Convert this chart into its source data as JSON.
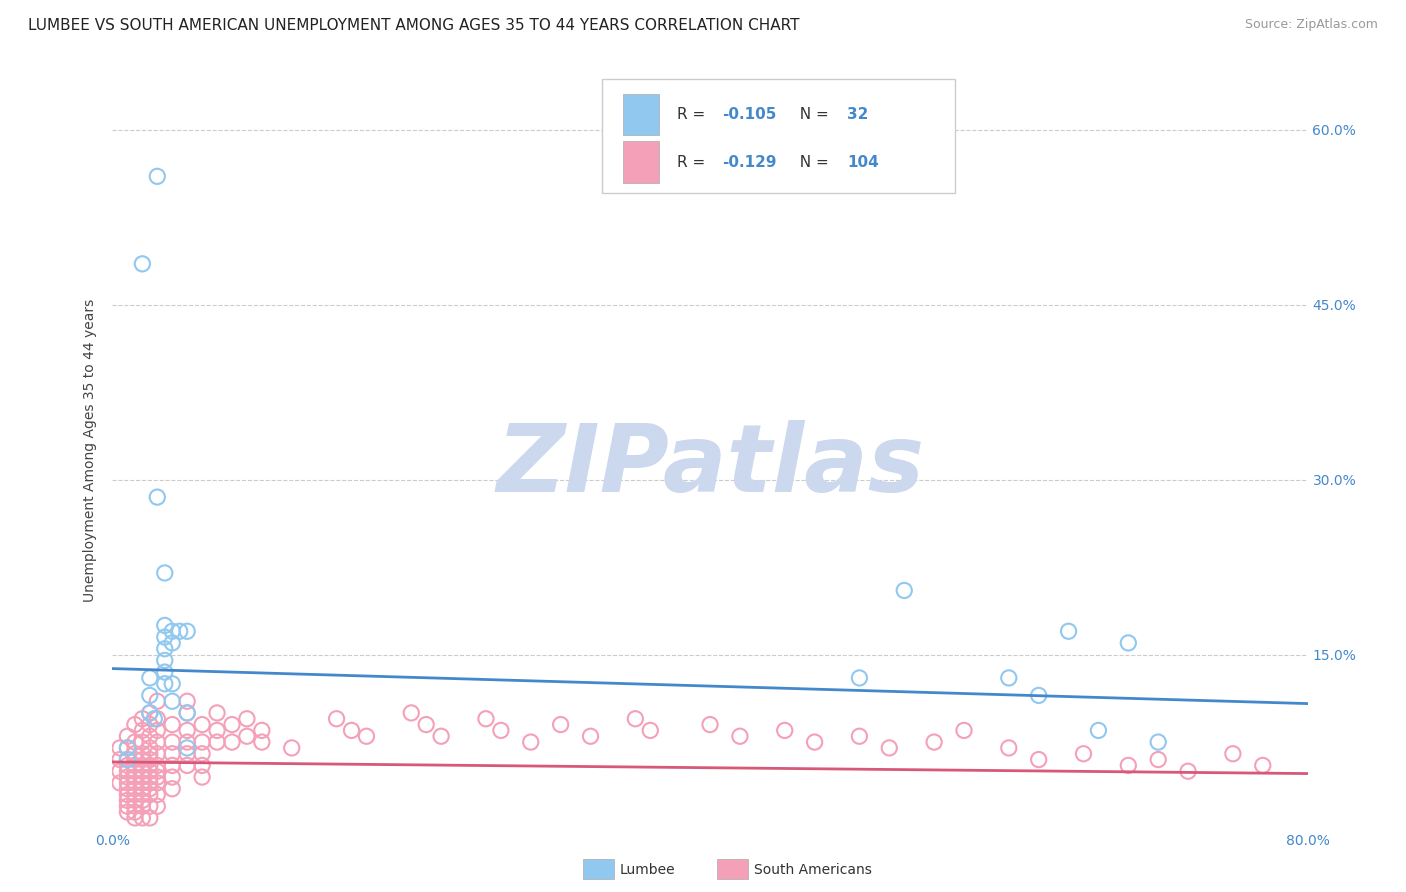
{
  "title": "LUMBEE VS SOUTH AMERICAN UNEMPLOYMENT AMONG AGES 35 TO 44 YEARS CORRELATION CHART",
  "source": "Source: ZipAtlas.com",
  "ylabel": "Unemployment Among Ages 35 to 44 years",
  "xlim": [
    0.0,
    0.8
  ],
  "ylim": [
    0.0,
    0.65
  ],
  "yticks": [
    0.0,
    0.15,
    0.3,
    0.45,
    0.6
  ],
  "yticklabels": [
    "",
    "15.0%",
    "30.0%",
    "45.0%",
    "60.0%"
  ],
  "xticks": [
    0.0,
    0.2,
    0.4,
    0.6,
    0.8
  ],
  "xticklabels": [
    "0.0%",
    "",
    "",
    "",
    "80.0%"
  ],
  "lumbee_R": "-0.105",
  "lumbee_N": "32",
  "south_american_R": "-0.129",
  "south_american_N": "104",
  "lumbee_color": "#90C8F0",
  "south_american_color": "#F4A0B8",
  "lumbee_line_color": "#4488CC",
  "south_american_line_color": "#D85878",
  "watermark_text": "ZIPatlas",
  "watermark_color": "#CBD8EE",
  "lumbee_points": [
    [
      0.01,
      0.07
    ],
    [
      0.01,
      0.06
    ],
    [
      0.02,
      0.485
    ],
    [
      0.025,
      0.13
    ],
    [
      0.025,
      0.115
    ],
    [
      0.025,
      0.1
    ],
    [
      0.028,
      0.095
    ],
    [
      0.03,
      0.56
    ],
    [
      0.03,
      0.285
    ],
    [
      0.035,
      0.22
    ],
    [
      0.035,
      0.175
    ],
    [
      0.035,
      0.165
    ],
    [
      0.035,
      0.155
    ],
    [
      0.035,
      0.145
    ],
    [
      0.035,
      0.135
    ],
    [
      0.035,
      0.125
    ],
    [
      0.04,
      0.17
    ],
    [
      0.04,
      0.16
    ],
    [
      0.04,
      0.125
    ],
    [
      0.04,
      0.11
    ],
    [
      0.045,
      0.17
    ],
    [
      0.05,
      0.17
    ],
    [
      0.05,
      0.1
    ],
    [
      0.05,
      0.07
    ],
    [
      0.5,
      0.13
    ],
    [
      0.53,
      0.205
    ],
    [
      0.6,
      0.13
    ],
    [
      0.62,
      0.115
    ],
    [
      0.64,
      0.17
    ],
    [
      0.66,
      0.085
    ],
    [
      0.68,
      0.16
    ],
    [
      0.7,
      0.075
    ]
  ],
  "south_american_points": [
    [
      0.005,
      0.07
    ],
    [
      0.005,
      0.06
    ],
    [
      0.005,
      0.05
    ],
    [
      0.005,
      0.04
    ],
    [
      0.01,
      0.08
    ],
    [
      0.01,
      0.07
    ],
    [
      0.01,
      0.06
    ],
    [
      0.01,
      0.055
    ],
    [
      0.01,
      0.05
    ],
    [
      0.01,
      0.045
    ],
    [
      0.01,
      0.04
    ],
    [
      0.01,
      0.035
    ],
    [
      0.01,
      0.03
    ],
    [
      0.01,
      0.025
    ],
    [
      0.01,
      0.02
    ],
    [
      0.01,
      0.015
    ],
    [
      0.015,
      0.09
    ],
    [
      0.015,
      0.075
    ],
    [
      0.015,
      0.065
    ],
    [
      0.015,
      0.06
    ],
    [
      0.015,
      0.055
    ],
    [
      0.015,
      0.05
    ],
    [
      0.015,
      0.045
    ],
    [
      0.015,
      0.04
    ],
    [
      0.015,
      0.035
    ],
    [
      0.015,
      0.03
    ],
    [
      0.015,
      0.025
    ],
    [
      0.015,
      0.02
    ],
    [
      0.015,
      0.015
    ],
    [
      0.015,
      0.01
    ],
    [
      0.02,
      0.095
    ],
    [
      0.02,
      0.085
    ],
    [
      0.02,
      0.075
    ],
    [
      0.02,
      0.065
    ],
    [
      0.02,
      0.06
    ],
    [
      0.02,
      0.055
    ],
    [
      0.02,
      0.05
    ],
    [
      0.02,
      0.045
    ],
    [
      0.02,
      0.04
    ],
    [
      0.02,
      0.035
    ],
    [
      0.02,
      0.03
    ],
    [
      0.02,
      0.025
    ],
    [
      0.02,
      0.02
    ],
    [
      0.02,
      0.01
    ],
    [
      0.025,
      0.1
    ],
    [
      0.025,
      0.09
    ],
    [
      0.025,
      0.08
    ],
    [
      0.025,
      0.07
    ],
    [
      0.025,
      0.065
    ],
    [
      0.025,
      0.06
    ],
    [
      0.025,
      0.055
    ],
    [
      0.025,
      0.05
    ],
    [
      0.025,
      0.045
    ],
    [
      0.025,
      0.04
    ],
    [
      0.025,
      0.035
    ],
    [
      0.025,
      0.03
    ],
    [
      0.025,
      0.02
    ],
    [
      0.025,
      0.01
    ],
    [
      0.03,
      0.11
    ],
    [
      0.03,
      0.095
    ],
    [
      0.03,
      0.085
    ],
    [
      0.03,
      0.075
    ],
    [
      0.03,
      0.065
    ],
    [
      0.03,
      0.055
    ],
    [
      0.03,
      0.05
    ],
    [
      0.03,
      0.045
    ],
    [
      0.03,
      0.04
    ],
    [
      0.03,
      0.03
    ],
    [
      0.03,
      0.02
    ],
    [
      0.04,
      0.09
    ],
    [
      0.04,
      0.075
    ],
    [
      0.04,
      0.065
    ],
    [
      0.04,
      0.055
    ],
    [
      0.04,
      0.045
    ],
    [
      0.04,
      0.035
    ],
    [
      0.05,
      0.11
    ],
    [
      0.05,
      0.1
    ],
    [
      0.05,
      0.085
    ],
    [
      0.05,
      0.075
    ],
    [
      0.05,
      0.065
    ],
    [
      0.05,
      0.055
    ],
    [
      0.06,
      0.09
    ],
    [
      0.06,
      0.075
    ],
    [
      0.06,
      0.065
    ],
    [
      0.06,
      0.055
    ],
    [
      0.06,
      0.045
    ],
    [
      0.07,
      0.1
    ],
    [
      0.07,
      0.085
    ],
    [
      0.07,
      0.075
    ],
    [
      0.08,
      0.09
    ],
    [
      0.08,
      0.075
    ],
    [
      0.09,
      0.095
    ],
    [
      0.09,
      0.08
    ],
    [
      0.1,
      0.085
    ],
    [
      0.1,
      0.075
    ],
    [
      0.12,
      0.07
    ],
    [
      0.15,
      0.095
    ],
    [
      0.16,
      0.085
    ],
    [
      0.17,
      0.08
    ],
    [
      0.2,
      0.1
    ],
    [
      0.21,
      0.09
    ],
    [
      0.22,
      0.08
    ],
    [
      0.25,
      0.095
    ],
    [
      0.26,
      0.085
    ],
    [
      0.28,
      0.075
    ],
    [
      0.3,
      0.09
    ],
    [
      0.32,
      0.08
    ],
    [
      0.35,
      0.095
    ],
    [
      0.36,
      0.085
    ],
    [
      0.4,
      0.09
    ],
    [
      0.42,
      0.08
    ],
    [
      0.45,
      0.085
    ],
    [
      0.47,
      0.075
    ],
    [
      0.5,
      0.08
    ],
    [
      0.52,
      0.07
    ],
    [
      0.55,
      0.075
    ],
    [
      0.57,
      0.085
    ],
    [
      0.6,
      0.07
    ],
    [
      0.62,
      0.06
    ],
    [
      0.65,
      0.065
    ],
    [
      0.68,
      0.055
    ],
    [
      0.7,
      0.06
    ],
    [
      0.72,
      0.05
    ],
    [
      0.75,
      0.065
    ],
    [
      0.77,
      0.055
    ]
  ],
  "lumbee_line_x": [
    0.0,
    0.8
  ],
  "lumbee_line_y_start": 0.138,
  "lumbee_line_y_end": 0.108,
  "south_american_line_y_start": 0.058,
  "south_american_line_y_end": 0.048,
  "background_color": "#FFFFFF",
  "grid_color": "#CCCCCC",
  "tick_color": "#4488CC",
  "title_fontsize": 11,
  "axis_label_fontsize": 10,
  "tick_fontsize": 10
}
